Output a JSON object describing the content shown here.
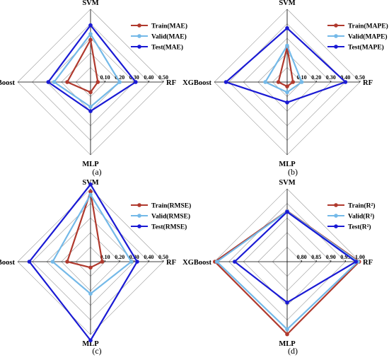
{
  "chart_data": [
    {
      "panel": "(a)",
      "type": "radar",
      "axes": [
        "SVM",
        "RF",
        "MLP",
        "XGBoost"
      ],
      "ticks": [
        "0.10",
        "0.20",
        "0.30",
        "0.40",
        "0.50"
      ],
      "range": [
        0,
        0.5
      ],
      "legend_position": "top-right",
      "series": [
        {
          "name": "Train(MAE)",
          "color": "#b03a2e",
          "values": [
            0.29,
            0.05,
            0.07,
            0.16
          ]
        },
        {
          "name": "Valid(MAE)",
          "color": "#74b9e8",
          "values": [
            0.33,
            0.2,
            0.17,
            0.25
          ]
        },
        {
          "name": "Test(MAE)",
          "color": "#1a1ad4",
          "values": [
            0.39,
            0.31,
            0.2,
            0.29
          ]
        }
      ]
    },
    {
      "panel": "(b)",
      "type": "radar",
      "axes": [
        "SVM",
        "RF",
        "MLP",
        "XGBoost"
      ],
      "ticks": [
        "0.10",
        "0.20",
        "0.30",
        "0.40",
        "0.50"
      ],
      "range": [
        0,
        0.5
      ],
      "legend_position": "top-right",
      "series": [
        {
          "name": "Train(MAPE)",
          "color": "#b03a2e",
          "values": [
            0.24,
            0.04,
            0.03,
            0.06
          ]
        },
        {
          "name": "Valid(MAPE)",
          "color": "#74b9e8",
          "values": [
            0.25,
            0.1,
            0.07,
            0.15
          ]
        },
        {
          "name": "Test(MAPE)",
          "color": "#1a1ad4",
          "values": [
            0.37,
            0.4,
            0.14,
            0.42
          ]
        }
      ]
    },
    {
      "panel": "(c)",
      "type": "radar",
      "axes": [
        "SVM",
        "RF",
        "MLP",
        "XGBoost"
      ],
      "ticks": [
        "0.10",
        "0.20",
        "0.30",
        "0.40",
        "0.50"
      ],
      "range": [
        0,
        0.5
      ],
      "legend_position": "top-right",
      "series": [
        {
          "name": "Train(RMSE)",
          "color": "#b03a2e",
          "values": [
            0.48,
            0.08,
            0.04,
            0.16
          ]
        },
        {
          "name": "Valid(RMSE)",
          "color": "#74b9e8",
          "values": [
            0.46,
            0.28,
            0.22,
            0.26
          ]
        },
        {
          "name": "Test(RMSE)",
          "color": "#1a1ad4",
          "values": [
            0.53,
            0.32,
            0.54,
            0.42
          ]
        }
      ]
    },
    {
      "panel": "(d)",
      "type": "radar",
      "axes": [
        "SVM",
        "RF",
        "MLP",
        "XGBoost"
      ],
      "ticks": [
        "0.80",
        "0.85",
        "0.90",
        "0.95",
        "1.00"
      ],
      "range": [
        0.75,
        1.0
      ],
      "legend_position": "top-right",
      "series": [
        {
          "name": "Train(R²)",
          "color": "#b03a2e",
          "values": [
            0.924,
            0.997,
            0.999,
            0.998
          ]
        },
        {
          "name": "Valid(R²)",
          "color": "#74b9e8",
          "values": [
            0.923,
            0.993,
            0.982,
            0.991
          ]
        },
        {
          "name": "Test(R²)",
          "color": "#1a1ad4",
          "values": [
            0.921,
            0.986,
            0.89,
            0.93
          ]
        }
      ]
    }
  ]
}
